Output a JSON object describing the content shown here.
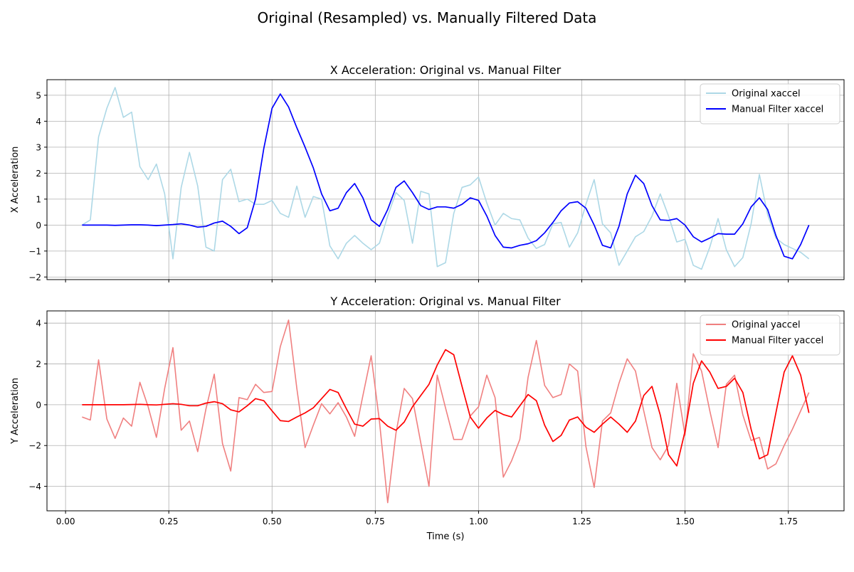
{
  "figure": {
    "title": "Original (Resampled) vs. Manually Filtered Data"
  },
  "colors": {
    "x_original": "#add8e6",
    "x_filtered": "#0000ff",
    "y_original": "#f08080",
    "y_filtered": "#ff0000",
    "grid": "#b0b0b0"
  },
  "chart_data": [
    {
      "type": "line",
      "title": "X Acceleration: Original vs. Manual Filter",
      "xlabel": "",
      "ylabel": "X Acceleration",
      "xlim": [
        -0.045,
        1.885
      ],
      "ylim": [
        -2.1,
        5.6
      ],
      "xticks": [
        0.0,
        0.25,
        0.5,
        0.75,
        1.0,
        1.25,
        1.5,
        1.75
      ],
      "xtick_labels": [
        "",
        "",
        "",
        "",
        "",
        "",
        "",
        ""
      ],
      "yticks": [
        -2,
        -1,
        0,
        1,
        2,
        3,
        4,
        5
      ],
      "ytick_labels": [
        "−2",
        "−1",
        "0",
        "1",
        "2",
        "3",
        "4",
        "5"
      ],
      "grid": true,
      "legend": "upper right",
      "x": [
        0.04,
        0.06,
        0.08,
        0.1,
        0.12,
        0.14,
        0.16,
        0.18,
        0.2,
        0.22,
        0.24,
        0.26,
        0.28,
        0.3,
        0.32,
        0.34,
        0.36,
        0.38,
        0.4,
        0.42,
        0.44,
        0.46,
        0.48,
        0.5,
        0.52,
        0.54,
        0.56,
        0.58,
        0.6,
        0.62,
        0.64,
        0.66,
        0.68,
        0.7,
        0.72,
        0.74,
        0.76,
        0.78,
        0.8,
        0.82,
        0.84,
        0.86,
        0.88,
        0.9,
        0.92,
        0.94,
        0.96,
        0.98,
        1.0,
        1.02,
        1.04,
        1.06,
        1.08,
        1.1,
        1.12,
        1.14,
        1.16,
        1.18,
        1.2,
        1.22,
        1.24,
        1.26,
        1.28,
        1.3,
        1.32,
        1.34,
        1.36,
        1.38,
        1.4,
        1.42,
        1.44,
        1.46,
        1.48,
        1.5,
        1.52,
        1.54,
        1.56,
        1.58,
        1.6,
        1.62,
        1.64,
        1.66,
        1.68,
        1.7,
        1.72,
        1.74,
        1.76,
        1.78,
        1.8
      ],
      "series": [
        {
          "name": "Original xaccel",
          "color_key": "x_original",
          "values": [
            0.0,
            0.2,
            3.4,
            4.5,
            5.3,
            4.15,
            4.35,
            2.25,
            1.75,
            2.35,
            1.2,
            -1.3,
            1.45,
            2.8,
            1.5,
            -0.85,
            -1.0,
            1.75,
            2.15,
            0.9,
            1.0,
            0.8,
            0.8,
            0.95,
            0.45,
            0.3,
            1.5,
            0.3,
            1.1,
            1.0,
            -0.8,
            -1.3,
            -0.7,
            -0.4,
            -0.7,
            -0.95,
            -0.7,
            0.35,
            1.25,
            0.95,
            -0.7,
            1.3,
            1.2,
            -1.6,
            -1.45,
            0.45,
            1.45,
            1.55,
            1.85,
            0.85,
            0.0,
            0.45,
            0.25,
            0.2,
            -0.5,
            -0.9,
            -0.75,
            0.05,
            0.1,
            -0.85,
            -0.3,
            0.8,
            1.75,
            0.05,
            -0.3,
            -1.55,
            -1.0,
            -0.45,
            -0.25,
            0.35,
            1.2,
            0.35,
            -0.65,
            -0.55,
            -1.55,
            -1.7,
            -0.85,
            0.25,
            -0.95,
            -1.6,
            -1.25,
            0.05,
            1.95,
            0.4,
            -0.5,
            -0.75,
            -0.9,
            -1.05,
            -1.3
          ]
        },
        {
          "name": "Manual Filter xaccel",
          "color_key": "x_filtered",
          "values": [
            0.0,
            0.0,
            0.0,
            0.0,
            -0.01,
            0.0,
            0.01,
            0.01,
            0.0,
            -0.02,
            0.0,
            0.02,
            0.05,
            0.0,
            -0.08,
            -0.05,
            0.08,
            0.15,
            -0.05,
            -0.33,
            -0.1,
            1.0,
            2.95,
            4.5,
            5.05,
            4.55,
            3.75,
            3.0,
            2.2,
            1.2,
            0.55,
            0.65,
            1.25,
            1.6,
            1.05,
            0.2,
            -0.05,
            0.6,
            1.45,
            1.7,
            1.25,
            0.75,
            0.6,
            0.7,
            0.7,
            0.65,
            0.8,
            1.05,
            0.95,
            0.35,
            -0.4,
            -0.85,
            -0.88,
            -0.78,
            -0.72,
            -0.6,
            -0.3,
            0.1,
            0.55,
            0.85,
            0.9,
            0.65,
            0.0,
            -0.78,
            -0.88,
            -0.05,
            1.2,
            1.92,
            1.6,
            0.75,
            0.2,
            0.18,
            0.25,
            0.0,
            -0.45,
            -0.65,
            -0.5,
            -0.33,
            -0.35,
            -0.35,
            0.05,
            0.7,
            1.05,
            0.6,
            -0.4,
            -1.2,
            -1.3,
            -0.75,
            0.0
          ]
        }
      ]
    },
    {
      "type": "line",
      "title": "Y Acceleration: Original vs. Manual Filter",
      "xlabel": "Time (s)",
      "ylabel": "Y Acceleration",
      "xlim": [
        -0.045,
        1.885
      ],
      "ylim": [
        -5.2,
        4.6
      ],
      "xticks": [
        0.0,
        0.25,
        0.5,
        0.75,
        1.0,
        1.25,
        1.5,
        1.75
      ],
      "xtick_labels": [
        "0.00",
        "0.25",
        "0.50",
        "0.75",
        "1.00",
        "1.25",
        "1.50",
        "1.75"
      ],
      "yticks": [
        -4,
        -2,
        0,
        2,
        4
      ],
      "ytick_labels": [
        "−4",
        "−2",
        "0",
        "2",
        "4"
      ],
      "grid": true,
      "legend": "upper right",
      "x": [
        0.04,
        0.06,
        0.08,
        0.1,
        0.12,
        0.14,
        0.16,
        0.18,
        0.2,
        0.22,
        0.24,
        0.26,
        0.28,
        0.3,
        0.32,
        0.34,
        0.36,
        0.38,
        0.4,
        0.42,
        0.44,
        0.46,
        0.48,
        0.5,
        0.52,
        0.54,
        0.56,
        0.58,
        0.6,
        0.62,
        0.64,
        0.66,
        0.68,
        0.7,
        0.72,
        0.74,
        0.76,
        0.78,
        0.8,
        0.82,
        0.84,
        0.86,
        0.88,
        0.9,
        0.92,
        0.94,
        0.96,
        0.98,
        1.0,
        1.02,
        1.04,
        1.06,
        1.08,
        1.1,
        1.12,
        1.14,
        1.16,
        1.18,
        1.2,
        1.22,
        1.24,
        1.26,
        1.28,
        1.3,
        1.32,
        1.34,
        1.36,
        1.38,
        1.4,
        1.42,
        1.44,
        1.46,
        1.48,
        1.5,
        1.52,
        1.54,
        1.56,
        1.58,
        1.6,
        1.62,
        1.64,
        1.66,
        1.68,
        1.7,
        1.72,
        1.74,
        1.76,
        1.78,
        1.8
      ],
      "series": [
        {
          "name": "Original yaccel",
          "color_key": "y_original",
          "values": [
            -0.6,
            -0.75,
            2.2,
            -0.7,
            -1.65,
            -0.65,
            -1.05,
            1.1,
            -0.1,
            -1.6,
            0.8,
            2.8,
            -1.25,
            -0.8,
            -2.3,
            -0.2,
            1.5,
            -1.9,
            -3.25,
            0.35,
            0.25,
            1.0,
            0.6,
            0.65,
            2.85,
            4.15,
            0.8,
            -2.1,
            -1.0,
            0.05,
            -0.45,
            0.1,
            -0.6,
            -1.55,
            0.45,
            2.4,
            -0.8,
            -4.8,
            -1.4,
            0.8,
            0.3,
            -1.85,
            -4.0,
            1.45,
            -0.15,
            -1.7,
            -1.7,
            -0.55,
            -0.1,
            1.45,
            0.35,
            -3.55,
            -2.75,
            -1.7,
            1.35,
            3.15,
            0.95,
            0.35,
            0.5,
            2.0,
            1.65,
            -2.05,
            -4.05,
            -0.8,
            -0.4,
            1.05,
            2.25,
            1.65,
            -0.3,
            -2.1,
            -2.7,
            -2.0,
            1.05,
            -1.5,
            2.5,
            1.65,
            -0.3,
            -2.1,
            1.0,
            1.45,
            -0.5,
            -1.75,
            -1.6,
            -3.15,
            -2.9,
            -2.0,
            -1.2,
            -0.3,
            0.6
          ]
        },
        {
          "name": "Manual Filter yaccel",
          "color_key": "y_filtered",
          "values": [
            0.0,
            0.0,
            0.0,
            0.0,
            0.0,
            0.0,
            0.01,
            0.02,
            0.0,
            -0.01,
            0.02,
            0.05,
            0.02,
            -0.05,
            -0.05,
            0.08,
            0.15,
            0.05,
            -0.25,
            -0.35,
            -0.05,
            0.3,
            0.2,
            -0.3,
            -0.78,
            -0.82,
            -0.6,
            -0.4,
            -0.15,
            0.3,
            0.75,
            0.6,
            -0.2,
            -0.95,
            -1.05,
            -0.7,
            -0.68,
            -1.05,
            -1.25,
            -0.85,
            -0.1,
            0.45,
            1.0,
            1.95,
            2.7,
            2.45,
            0.9,
            -0.6,
            -1.15,
            -0.65,
            -0.28,
            -0.48,
            -0.6,
            -0.05,
            0.5,
            0.2,
            -1.0,
            -1.8,
            -1.5,
            -0.75,
            -0.6,
            -1.1,
            -1.35,
            -0.95,
            -0.6,
            -0.95,
            -1.35,
            -0.8,
            0.45,
            0.9,
            -0.5,
            -2.45,
            -3.0,
            -1.3,
            1.05,
            2.15,
            1.6,
            0.8,
            0.9,
            1.3,
            0.6,
            -1.2,
            -2.65,
            -2.45,
            -0.4,
            1.6,
            2.4,
            1.45,
            -0.4
          ]
        }
      ]
    }
  ]
}
